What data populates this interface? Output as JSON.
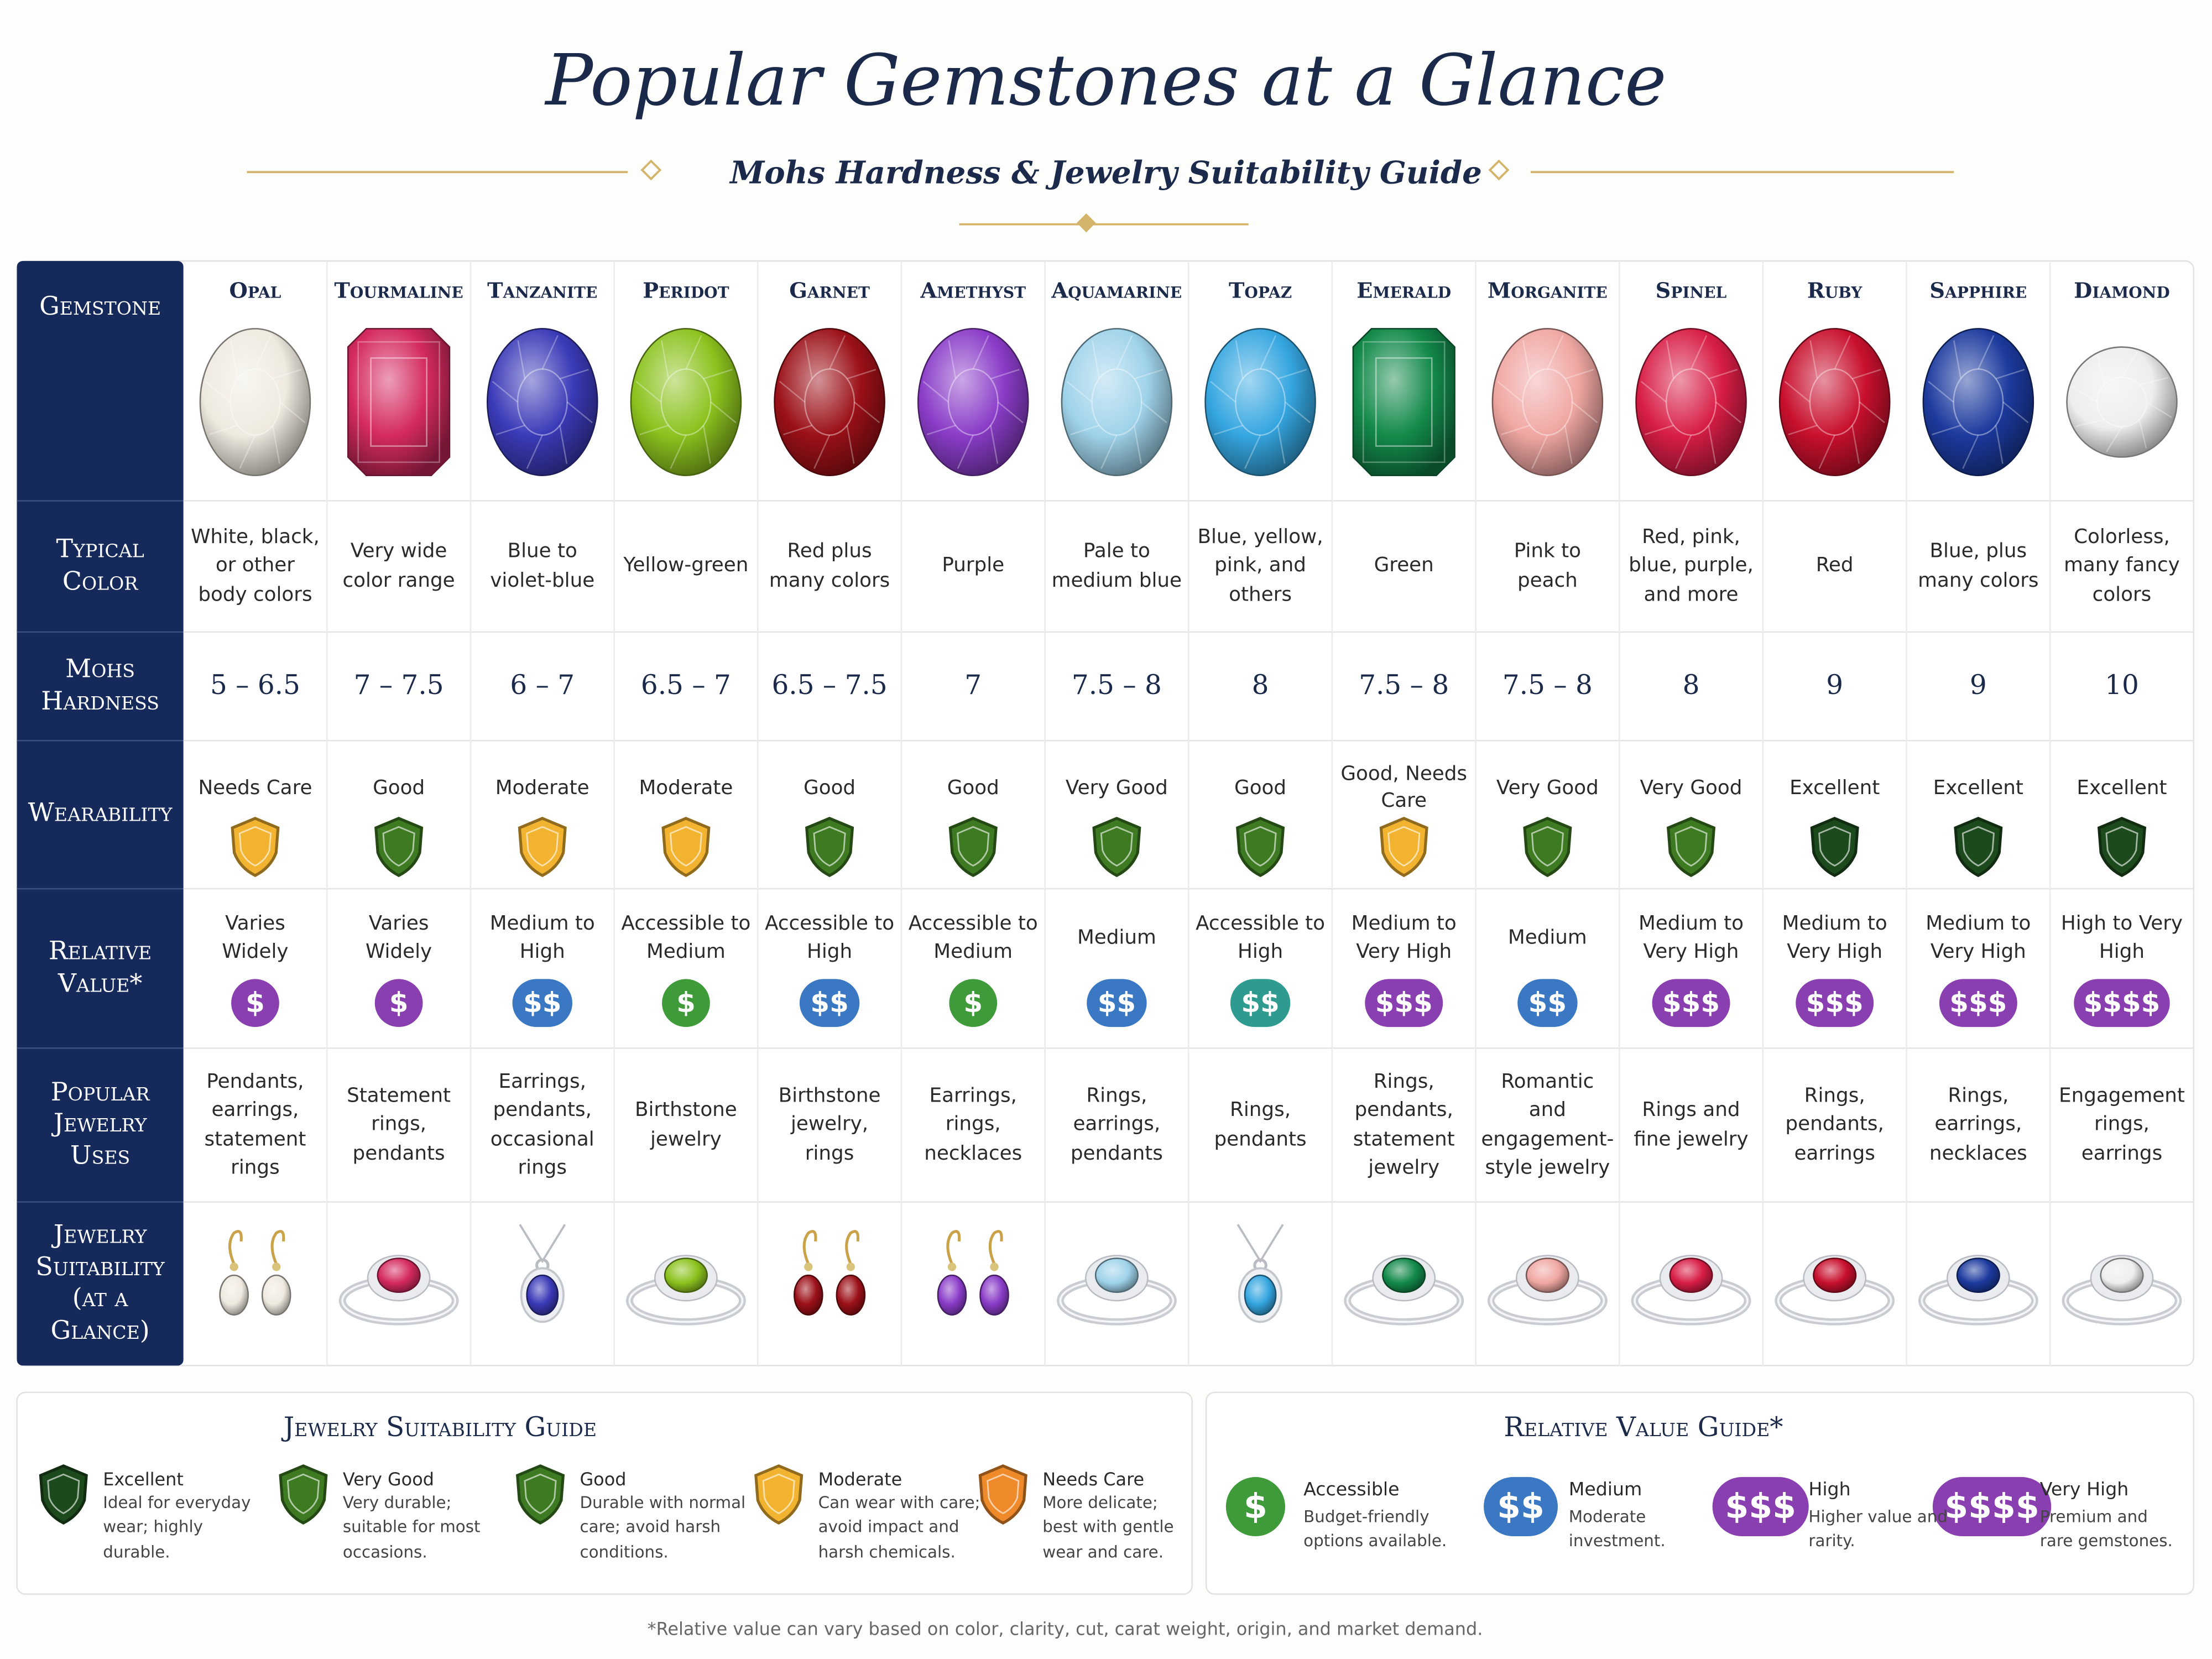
{
  "header": {
    "title": "Popular Gemstones at a Glance",
    "subtitle": "Mohs Hardness & Jewelry Suitability Guide"
  },
  "table": {
    "row_labels": [
      "Gemstone",
      "Typical Color",
      "Mohs Hardness",
      "Wearability",
      "Relative Value*",
      "Popular Jewelry Uses",
      "Jewelry Suitability (at a Glance)"
    ],
    "gems": [
      {
        "name": "Opal",
        "color": "#efeae0",
        "shape": "oval",
        "jewelry": "earrings",
        "typical_color": "White, black, or other body colors",
        "hardness": "5 – 6.5",
        "wearability": "Needs Care",
        "shield_color": "#f2b331",
        "value": "Varies Widely",
        "value_symbol": "$",
        "value_color": "#8a3fb0",
        "uses": "Pendants, earrings, statement rings"
      },
      {
        "name": "Tourmaline",
        "color": "#d42a5f",
        "shape": "emerald",
        "jewelry": "ring",
        "typical_color": "Very wide color range",
        "hardness": "7 – 7.5",
        "wearability": "Good",
        "shield_color": "#3d7a22",
        "value": "Varies Widely",
        "value_symbol": "$",
        "value_color": "#8a3fb0",
        "uses": "Statement rings, pendants"
      },
      {
        "name": "Tanzanite",
        "color": "#3a3ab8",
        "shape": "oval",
        "jewelry": "pendant",
        "typical_color": "Blue to violet-blue",
        "hardness": "6 – 7",
        "wearability": "Moderate",
        "shield_color": "#f2b331",
        "value": "Medium to High",
        "value_symbol": "$$",
        "value_color": "#3a78c4",
        "uses": "Earrings, pendants, occasional rings"
      },
      {
        "name": "Peridot",
        "color": "#8cc21e",
        "shape": "oval",
        "jewelry": "ring",
        "typical_color": "Yellow-green",
        "hardness": "6.5 – 7",
        "wearability": "Moderate",
        "shield_color": "#f2b331",
        "value": "Accessible to Medium",
        "value_symbol": "$",
        "value_color": "#3f9a3a",
        "uses": "Birthstone jewelry"
      },
      {
        "name": "Garnet",
        "color": "#9b1018",
        "shape": "oval",
        "jewelry": "earrings",
        "typical_color": "Red plus many colors",
        "hardness": "6.5 – 7.5",
        "wearability": "Good",
        "shield_color": "#3d7a22",
        "value": "Accessible to High",
        "value_symbol": "$$",
        "value_color": "#3a78c4",
        "uses": "Birthstone jewelry, rings"
      },
      {
        "name": "Amethyst",
        "color": "#8a3cc8",
        "shape": "oval",
        "jewelry": "earrings",
        "typical_color": "Purple",
        "hardness": "7",
        "wearability": "Good",
        "shield_color": "#3d7a22",
        "value": "Accessible to Medium",
        "value_symbol": "$",
        "value_color": "#3f9a3a",
        "uses": "Earrings, rings, necklaces"
      },
      {
        "name": "Aquamarine",
        "color": "#9fd3ea",
        "shape": "oval",
        "jewelry": "ring",
        "typical_color": "Pale to medium blue",
        "hardness": "7.5 – 8",
        "wearability": "Very Good",
        "shield_color": "#3d7a22",
        "value": "Medium",
        "value_symbol": "$$",
        "value_color": "#3a78c4",
        "uses": "Rings, earrings, pendants"
      },
      {
        "name": "Topaz",
        "color": "#35a6e0",
        "shape": "oval",
        "jewelry": "pendant",
        "typical_color": "Blue, yellow, pink, and others",
        "hardness": "8",
        "wearability": "Good",
        "shield_color": "#3d7a22",
        "value": "Accessible to High",
        "value_symbol": "$$",
        "value_color": "#2f9a8f",
        "uses": "Rings, pendants"
      },
      {
        "name": "Emerald",
        "color": "#138a4a",
        "shape": "emerald",
        "jewelry": "ring",
        "typical_color": "Green",
        "hardness": "7.5 – 8",
        "wearability": "Good, Needs Care",
        "shield_color": "#f2b331",
        "value": "Medium to Very High",
        "value_symbol": "$$$",
        "value_color": "#8a3fb0",
        "uses": "Rings, pendants, statement jewelry"
      },
      {
        "name": "Morganite",
        "color": "#f0a7a3",
        "shape": "oval",
        "jewelry": "ring",
        "typical_color": "Pink to peach",
        "hardness": "7.5 – 8",
        "wearability": "Very Good",
        "shield_color": "#3d7a22",
        "value": "Medium",
        "value_symbol": "$$",
        "value_color": "#3a78c4",
        "uses": "Romantic and engagement-style jewelry"
      },
      {
        "name": "Spinel",
        "color": "#d81d45",
        "shape": "oval",
        "jewelry": "ring",
        "typical_color": "Red, pink, blue, purple, and more",
        "hardness": "8",
        "wearability": "Very Good",
        "shield_color": "#3d7a22",
        "value": "Medium to Very High",
        "value_symbol": "$$$",
        "value_color": "#8a3fb0",
        "uses": "Rings and fine jewelry"
      },
      {
        "name": "Ruby",
        "color": "#c8102e",
        "shape": "oval",
        "jewelry": "ring",
        "typical_color": "Red",
        "hardness": "9",
        "wearability": "Excellent",
        "shield_color": "#1d4a1d",
        "value": "Medium to Very High",
        "value_symbol": "$$$",
        "value_color": "#8a3fb0",
        "uses": "Rings, pendants, earrings"
      },
      {
        "name": "Sapphire",
        "color": "#1c3a9e",
        "shape": "oval",
        "jewelry": "ring",
        "typical_color": "Blue, plus many colors",
        "hardness": "9",
        "wearability": "Excellent",
        "shield_color": "#1d4a1d",
        "value": "Medium to Very High",
        "value_symbol": "$$$",
        "value_color": "#8a3fb0",
        "uses": "Rings, earrings, necklaces"
      },
      {
        "name": "Diamond",
        "color": "#eeeeee",
        "shape": "round",
        "jewelry": "ring",
        "typical_color": "Colorless, many fancy colors",
        "hardness": "10",
        "wearability": "Excellent",
        "shield_color": "#1d4a1d",
        "value": "High to Very High",
        "value_symbol": "$$$$",
        "value_color": "#8a3fb0",
        "uses": "Engagement rings, earrings"
      }
    ]
  },
  "suitability_guide": {
    "title": "Jewelry Suitability Guide",
    "items": [
      {
        "level": "Excellent",
        "description": "Ideal for everyday wear; highly durable.",
        "color": "#1d4a1d"
      },
      {
        "level": "Very Good",
        "description": "Very durable; suitable for most occasions.",
        "color": "#3d7a22"
      },
      {
        "level": "Good",
        "description": "Durable with normal care; avoid harsh conditions.",
        "color": "#3d7a22"
      },
      {
        "level": "Moderate",
        "description": "Can wear with care; avoid impact and harsh chemicals.",
        "color": "#f2b331"
      },
      {
        "level": "Needs Care",
        "description": "More delicate; best with gentle wear and care.",
        "color": "#ef8a2a"
      }
    ]
  },
  "value_guide": {
    "title": "Relative Value Guide*",
    "items": [
      {
        "symbol": "$",
        "level": "Accessible",
        "description": "Budget-friendly options available.",
        "color": "#3f9a3a"
      },
      {
        "symbol": "$$",
        "level": "Medium",
        "description": "Moderate investment.",
        "color": "#3a78c4"
      },
      {
        "symbol": "$$$",
        "level": "High",
        "description": "Higher value and rarity.",
        "color": "#8a3fb0"
      },
      {
        "symbol": "$$$$",
        "level": "Very High",
        "description": "Premium and rare gemstones.",
        "color": "#8a3fb0"
      }
    ]
  },
  "footnote": "*Relative value can vary based on color, clarity, cut, carat weight, origin, and market demand."
}
